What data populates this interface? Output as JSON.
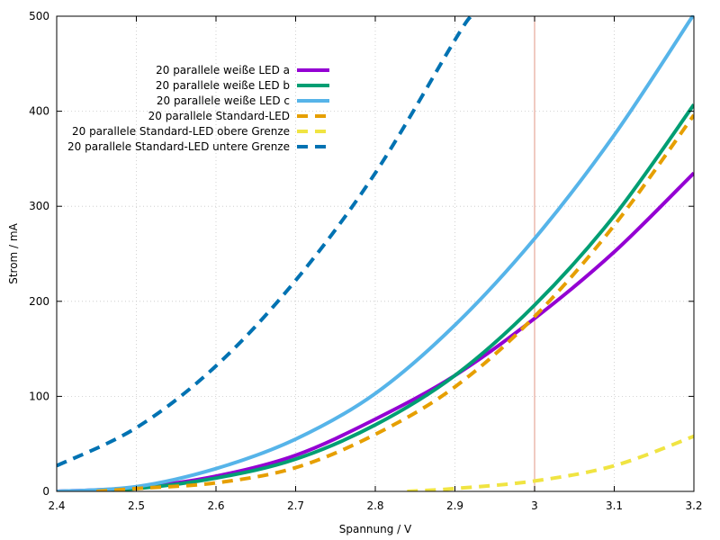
{
  "chart_data": {
    "type": "line",
    "title": "",
    "xlabel": "Spannung / V",
    "ylabel": "Strom / mA",
    "xlim": [
      2.4,
      3.2
    ],
    "ylim": [
      0,
      500
    ],
    "x_ticks": [
      2.4,
      2.5,
      2.6,
      2.7,
      2.8,
      2.9,
      3.0,
      3.1,
      3.2
    ],
    "x_tick_labels": [
      "2.4",
      "2.5",
      "2.6",
      "2.7",
      "2.8",
      "2.9",
      "3",
      "3.1",
      "3.2"
    ],
    "y_ticks": [
      0,
      100,
      200,
      300,
      400,
      500
    ],
    "y_tick_labels": [
      "0",
      "100",
      "200",
      "300",
      "400",
      "500"
    ],
    "grid": true,
    "legend_position": "top-left",
    "vertical_marker": {
      "x": 3.0,
      "color": "#e6a89a"
    },
    "series": [
      {
        "name": "20 parallele weiße LED a",
        "color": "#9400d3",
        "dash": false,
        "x": [
          2.4,
          2.5,
          2.6,
          2.7,
          2.8,
          2.9,
          3.0,
          3.1,
          3.2
        ],
        "y": [
          0,
          4,
          16,
          38,
          76,
          122,
          182,
          252,
          335
        ]
      },
      {
        "name": "20 parallele weiße LED b",
        "color": "#009e73",
        "dash": false,
        "x": [
          2.4,
          2.5,
          2.6,
          2.7,
          2.8,
          2.9,
          3.0,
          3.1,
          3.2
        ],
        "y": [
          0,
          3,
          14,
          34,
          70,
          122,
          196,
          290,
          407
        ]
      },
      {
        "name": "20 parallele weiße LED c",
        "color": "#56b4e9",
        "dash": false,
        "x": [
          2.4,
          2.5,
          2.6,
          2.7,
          2.8,
          2.9,
          3.0,
          3.1,
          3.2
        ],
        "y": [
          0,
          5,
          24,
          55,
          103,
          175,
          266,
          375,
          502
        ]
      },
      {
        "name": "20 parallele Standard-LED",
        "color": "#e69f00",
        "dash": true,
        "x": [
          2.45,
          2.5,
          2.6,
          2.7,
          2.8,
          2.9,
          3.0,
          3.1,
          3.2
        ],
        "y": [
          0,
          3,
          9,
          25,
          60,
          110,
          184,
          280,
          396
        ]
      },
      {
        "name": "20 parallele Standard-LED obere Grenze",
        "color": "#f0e442",
        "dash": true,
        "x": [
          2.84,
          2.9,
          3.0,
          3.1,
          3.2
        ],
        "y": [
          0,
          3,
          11,
          27,
          58
        ]
      },
      {
        "name": "20 parallele Standard-LED untere Grenze",
        "color": "#0072b2",
        "dash": true,
        "x": [
          2.4,
          2.5,
          2.6,
          2.7,
          2.8,
          2.9,
          2.92
        ],
        "y": [
          27,
          67,
          132,
          222,
          335,
          475,
          500
        ]
      }
    ]
  }
}
